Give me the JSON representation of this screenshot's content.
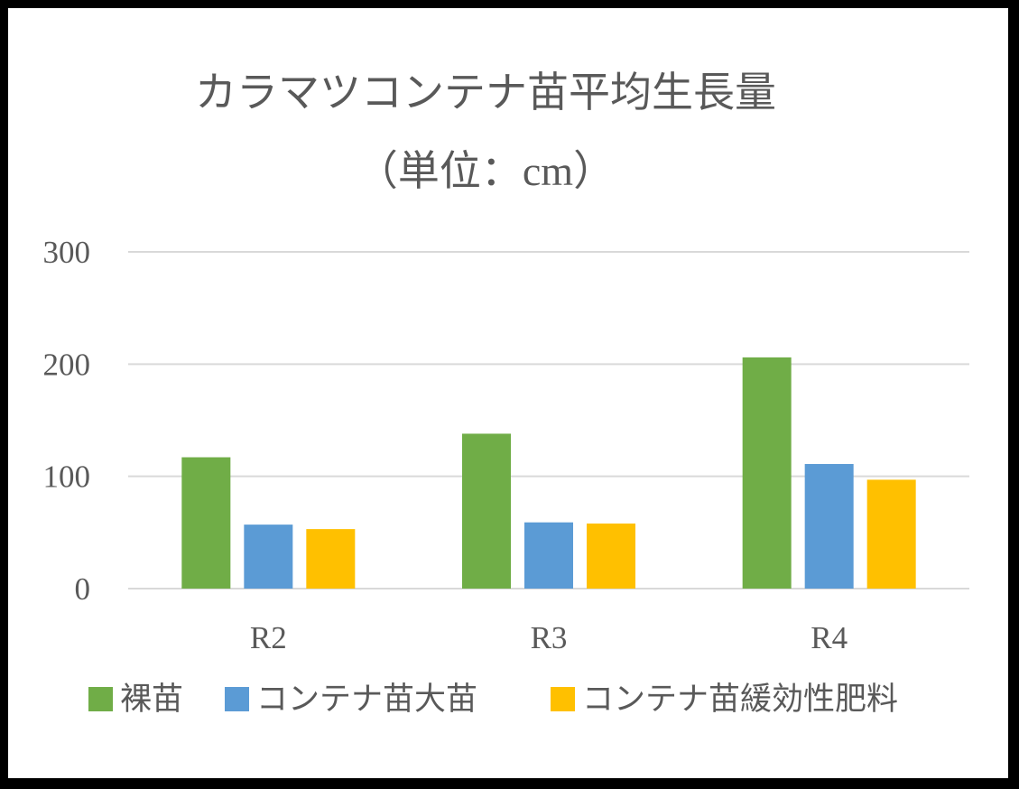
{
  "chart_data": {
    "type": "bar",
    "title": "カラマツコンテナ苗平均生長量",
    "subtitle": "（単位：cm）",
    "categories": [
      "R2",
      "R3",
      "R4"
    ],
    "series": [
      {
        "name": "裸苗",
        "color": "#70AD47",
        "values": [
          117,
          138,
          206
        ]
      },
      {
        "name": "コンテナ苗大苗",
        "color": "#5B9BD5",
        "values": [
          57,
          59,
          111
        ]
      },
      {
        "name": "コンテナ苗緩効性肥料",
        "color": "#FFC000",
        "values": [
          53,
          58,
          97
        ]
      }
    ],
    "ylim": [
      0,
      300
    ],
    "yticks": [
      "0",
      "100",
      "200",
      "300"
    ],
    "grid": true,
    "legend_position": "bottom"
  }
}
